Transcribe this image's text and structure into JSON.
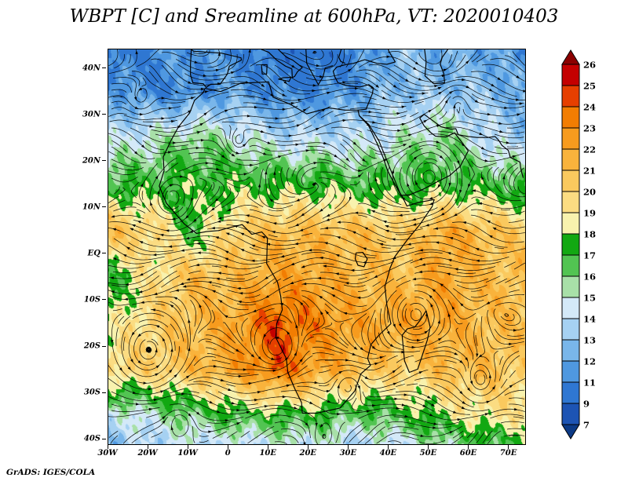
{
  "page": {
    "credit": "GrADS: IGES/COLA"
  },
  "chart_data": {
    "type": "heatmap",
    "title": "WBPT [C] and Sreamline at 600hPa, VT: 2020010403",
    "variable": "WBPT [C]",
    "overlay": "Streamline",
    "pressure_level": "600hPa",
    "valid_time": "2020010403",
    "x_axis": {
      "tick_labels": [
        "30W",
        "20W",
        "10W",
        "0",
        "10E",
        "20E",
        "30E",
        "40E",
        "50E",
        "60E",
        "70E"
      ],
      "tick_lons": [
        -30,
        -20,
        -10,
        0,
        10,
        20,
        30,
        40,
        50,
        60,
        70
      ]
    },
    "y_axis": {
      "tick_labels": [
        "40N",
        "30N",
        "20N",
        "10N",
        "EQ",
        "10S",
        "20S",
        "30S",
        "40S"
      ],
      "tick_lats": [
        40,
        30,
        20,
        10,
        0,
        -10,
        -20,
        -30,
        -40
      ]
    },
    "lon_range": [
      -30,
      74
    ],
    "lat_range": [
      -41,
      44.2
    ],
    "colorbar": {
      "levels_low_to_high": [
        7,
        9,
        11,
        12,
        13,
        14,
        15,
        16,
        17,
        18,
        19,
        20,
        21,
        22,
        23,
        24,
        25,
        26
      ],
      "colors_low_to_high": [
        "#0c3a86",
        "#1d54b4",
        "#2f77d2",
        "#4f98e0",
        "#79b6ea",
        "#a6d1f2",
        "#d4e9f8",
        "#a8e0a8",
        "#52c452",
        "#12a812",
        "#f8f2ae",
        "#fbdc82",
        "#fac95e",
        "#f9b33c",
        "#f79b1e",
        "#f27d02",
        "#e63f00",
        "#c40000",
        "#8b0000"
      ]
    },
    "field_grid": {
      "lats": [
        45,
        35,
        25,
        15,
        5,
        -5,
        -15,
        -25,
        -35,
        -45
      ],
      "lons": [
        -30,
        -19.5,
        -9,
        1.5,
        12,
        22.5,
        33,
        43.5,
        54,
        64.5,
        75
      ],
      "values": [
        [
          10,
          11,
          12,
          11,
          10,
          9.5,
          11,
          13,
          12,
          12,
          11
        ],
        [
          12,
          11,
          11,
          12,
          11,
          11,
          12,
          13,
          13,
          13,
          12
        ],
        [
          14,
          15,
          16,
          15,
          14,
          14,
          14,
          15,
          16,
          14,
          13
        ],
        [
          17,
          17,
          17.5,
          17.5,
          17.5,
          17.5,
          17,
          17,
          17,
          17,
          16.5
        ],
        [
          21,
          20,
          17,
          20,
          21,
          21,
          21,
          20,
          22,
          21,
          20
        ],
        [
          17,
          19,
          21,
          21,
          22,
          22,
          21,
          21,
          22,
          21,
          21
        ],
        [
          18,
          20,
          21,
          22,
          24.5,
          23,
          22,
          22,
          22,
          21,
          21
        ],
        [
          20,
          20,
          21,
          22,
          24,
          22,
          21,
          20,
          21,
          21,
          20
        ],
        [
          14,
          15,
          16,
          17,
          17,
          17,
          16,
          17,
          18,
          19,
          19
        ],
        [
          12,
          13,
          13,
          12,
          13,
          13,
          12,
          13,
          14,
          15,
          16
        ]
      ]
    },
    "circulations": [
      {
        "lon": -20,
        "lat": -21,
        "spin": 2.4,
        "r": 6
      },
      {
        "lon": 47,
        "lat": -13,
        "spin": 2.2,
        "r": 5
      },
      {
        "lon": 12,
        "lat": -20,
        "spin": 2.0,
        "r": 4
      },
      {
        "lon": 30,
        "lat": -28,
        "spin": -1.4,
        "r": 3.5
      },
      {
        "lon": -14,
        "lat": 12,
        "spin": -1.6,
        "r": 4
      },
      {
        "lon": 50,
        "lat": 17,
        "spin": -2.0,
        "r": 5
      },
      {
        "lon": 63,
        "lat": -28,
        "spin": 1.5,
        "r": 4
      },
      {
        "lon": -22,
        "lat": 33,
        "spin": 1.4,
        "r": 3
      },
      {
        "lon": 57,
        "lat": 33,
        "spin": -1.3,
        "r": 3
      },
      {
        "lon": 2,
        "lat": 24,
        "spin": 1.1,
        "r": 3
      },
      {
        "lon": 24,
        "lat": -40,
        "spin": 1.3,
        "r": 3.5
      },
      {
        "lon": -12,
        "lat": -36,
        "spin": -1.2,
        "r": 3
      }
    ],
    "coastlines": [
      [
        [
          -5.9,
          35.8
        ],
        [
          -2,
          35.1
        ],
        [
          3,
          36.9
        ],
        [
          10,
          37.2
        ],
        [
          11.1,
          33.9
        ],
        [
          15.3,
          32.4
        ],
        [
          19.5,
          30.3
        ],
        [
          25,
          31.6
        ],
        [
          29,
          31.1
        ],
        [
          32.3,
          31.1
        ],
        [
          32.6,
          29.9
        ],
        [
          34.9,
          27.8
        ],
        [
          37,
          24
        ],
        [
          38.5,
          21
        ],
        [
          39.7,
          18
        ],
        [
          41.5,
          15
        ],
        [
          43.3,
          12.5
        ],
        [
          44.5,
          10.4
        ],
        [
          47.5,
          11.2
        ],
        [
          51.3,
          11.8
        ],
        [
          50.8,
          10.3
        ],
        [
          47.8,
          6.5
        ],
        [
          44.5,
          3
        ],
        [
          41.5,
          -0.5
        ],
        [
          40.3,
          -3
        ],
        [
          39,
          -7
        ],
        [
          39.5,
          -11
        ],
        [
          40.5,
          -15
        ],
        [
          37.5,
          -17.5
        ],
        [
          35.5,
          -19.5
        ],
        [
          34.7,
          -22.5
        ],
        [
          35.4,
          -24
        ],
        [
          33,
          -25.8
        ],
        [
          31.5,
          -29.5
        ],
        [
          27.8,
          -33.2
        ],
        [
          22,
          -34.3
        ],
        [
          18.4,
          -34.3
        ],
        [
          18.2,
          -32
        ],
        [
          16.5,
          -29
        ],
        [
          14.8,
          -25.5
        ],
        [
          14.4,
          -22.5
        ],
        [
          11.8,
          -18
        ],
        [
          12,
          -15
        ],
        [
          13.4,
          -12
        ],
        [
          13,
          -9
        ],
        [
          12.2,
          -6
        ],
        [
          9.5,
          -2
        ],
        [
          9.6,
          1
        ],
        [
          9.7,
          3.5
        ],
        [
          8.3,
          4.8
        ],
        [
          5.8,
          4.3
        ],
        [
          3.4,
          6.4
        ],
        [
          0.5,
          5.8
        ],
        [
          -2.5,
          5.1
        ],
        [
          -5.5,
          4.9
        ],
        [
          -8,
          4.5
        ],
        [
          -11,
          6.5
        ],
        [
          -13.5,
          9
        ],
        [
          -15.5,
          11
        ],
        [
          -17.3,
          14.7
        ],
        [
          -16.1,
          18
        ],
        [
          -16.3,
          21
        ],
        [
          -14.4,
          24.5
        ],
        [
          -12.5,
          27.5
        ],
        [
          -9.7,
          30.5
        ],
        [
          -8.5,
          33.2
        ],
        [
          -6.3,
          34.9
        ],
        [
          -5.9,
          35.8
        ]
      ],
      [
        [
          49.3,
          -12.2
        ],
        [
          50.3,
          -15.7
        ],
        [
          49.6,
          -18.5
        ],
        [
          47.2,
          -24.8
        ],
        [
          45.1,
          -25.5
        ],
        [
          43.9,
          -23
        ],
        [
          43.3,
          -17.5
        ],
        [
          44.6,
          -16.1
        ],
        [
          46.5,
          -15.7
        ],
        [
          48,
          -14
        ],
        [
          49.3,
          -12.2
        ]
      ],
      [
        [
          32.6,
          29.9
        ],
        [
          35,
          28
        ],
        [
          37.5,
          24.5
        ],
        [
          39,
          21.3
        ],
        [
          41,
          17
        ],
        [
          43,
          12.7
        ],
        [
          45.1,
          12.8
        ],
        [
          48.5,
          14
        ],
        [
          52.2,
          15.7
        ],
        [
          55.2,
          17
        ],
        [
          57.8,
          19
        ],
        [
          59.8,
          22.3
        ],
        [
          58.6,
          23.7
        ],
        [
          56.4,
          26.2
        ],
        [
          54.2,
          25.3
        ],
        [
          51.6,
          25.5
        ],
        [
          50.4,
          26.3
        ],
        [
          48.8,
          27.7
        ],
        [
          47.7,
          29.4
        ],
        [
          48.8,
          30.2
        ]
      ],
      [
        [
          32.3,
          31.1
        ],
        [
          34.3,
          31.3
        ],
        [
          35.1,
          33
        ],
        [
          35.9,
          34.7
        ],
        [
          36.1,
          35.9
        ],
        [
          35,
          36.6
        ],
        [
          32.8,
          36.1
        ],
        [
          30.5,
          36.3
        ],
        [
          29,
          36.5
        ],
        [
          27.3,
          37
        ],
        [
          26.5,
          38.3
        ],
        [
          26.1,
          39.5
        ],
        [
          27,
          40.4
        ],
        [
          29.1,
          40.9
        ],
        [
          31.2,
          41.2
        ],
        [
          34,
          42
        ],
        [
          37,
          41.2
        ],
        [
          39.5,
          41
        ],
        [
          41.6,
          41.5
        ],
        [
          40.2,
          43.5
        ],
        [
          39.8,
          44.2
        ]
      ],
      [
        [
          -9.3,
          44.2
        ],
        [
          -9.5,
          41
        ],
        [
          -9.5,
          38.7
        ],
        [
          -8.9,
          37
        ],
        [
          -6.3,
          36.8
        ],
        [
          -5.6,
          36
        ],
        [
          -4.4,
          36.7
        ],
        [
          -2.1,
          36.7
        ],
        [
          -0.3,
          38.9
        ],
        [
          0.2,
          40.6
        ],
        [
          3.2,
          41.9
        ],
        [
          3.1,
          42.4
        ],
        [
          -1.8,
          43.4
        ],
        [
          -8.7,
          43.8
        ],
        [
          -9.3,
          44.2
        ]
      ],
      [
        [
          8.2,
          44.2
        ],
        [
          10,
          43.6
        ],
        [
          12,
          41.9
        ],
        [
          14.2,
          40.6
        ],
        [
          15.8,
          40
        ],
        [
          15.9,
          38.1
        ],
        [
          16.5,
          38.4
        ],
        [
          17.2,
          39.4
        ],
        [
          18.4,
          40.3
        ],
        [
          16,
          41.9
        ],
        [
          14.5,
          42.5
        ],
        [
          13,
          43.7
        ],
        [
          12.4,
          44.2
        ]
      ],
      [
        [
          12.4,
          37.8
        ],
        [
          15.1,
          37.3
        ],
        [
          15.6,
          38.2
        ],
        [
          13.7,
          38.1
        ],
        [
          12.4,
          37.8
        ]
      ],
      [
        [
          8.2,
          40.9
        ],
        [
          9.6,
          40.9
        ],
        [
          9.5,
          38.9
        ],
        [
          8.4,
          38.9
        ],
        [
          8.2,
          40.9
        ]
      ],
      [
        [
          19.3,
          44.2
        ],
        [
          19.5,
          41.2
        ],
        [
          21,
          38.8
        ],
        [
          22.4,
          36.6
        ],
        [
          23.6,
          38.4
        ],
        [
          24.1,
          40.2
        ],
        [
          26,
          40.7
        ]
      ],
      [
        [
          48.9,
          44.2
        ],
        [
          49.3,
          41.5
        ],
        [
          49,
          38.5
        ],
        [
          51.2,
          36.8
        ],
        [
          53.9,
          37
        ],
        [
          53.7,
          39
        ],
        [
          52.8,
          41
        ],
        [
          53.3,
          42.5
        ],
        [
          54.7,
          44.2
        ]
      ],
      [
        [
          48.8,
          30.2
        ],
        [
          51,
          28.8
        ],
        [
          53,
          27.5
        ],
        [
          55.5,
          27
        ],
        [
          56.7,
          27.1
        ],
        [
          57.3,
          25.8
        ],
        [
          59.8,
          25.4
        ],
        [
          62,
          25.2
        ],
        [
          64.7,
          25.2
        ],
        [
          66.5,
          25.4
        ],
        [
          67.3,
          24.7
        ],
        [
          68.2,
          23.5
        ],
        [
          69.8,
          22.4
        ],
        [
          70.3,
          20.9
        ],
        [
          72.7,
          19.9
        ],
        [
          72.9,
          18.5
        ],
        [
          73.5,
          16.5
        ]
      ],
      [
        [
          31.8,
          0.3
        ],
        [
          33.5,
          0.4
        ],
        [
          34.6,
          -1
        ],
        [
          33.8,
          -2.7
        ],
        [
          32.3,
          -2.4
        ],
        [
          31.6,
          -1
        ],
        [
          31.8,
          0.3
        ]
      ],
      [
        [
          28.1,
          44.2
        ],
        [
          27.5,
          42.5
        ],
        [
          28,
          41.6
        ],
        [
          29.1,
          41.2
        ]
      ]
    ]
  }
}
